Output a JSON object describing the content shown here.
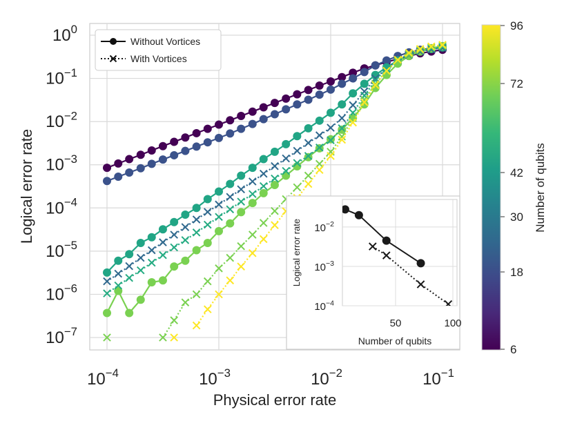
{
  "chart_data": [
    {
      "type": "line",
      "title": "",
      "xlabel": "Physical error rate",
      "ylabel": "Logical error rate",
      "x_scale": "log",
      "y_scale": "log",
      "xlim": [
        0.0001,
        0.1
      ],
      "ylim": [
        1e-07,
        1
      ],
      "x_ticks": [
        {
          "value": 0.0001,
          "base": "10",
          "exp": "−4"
        },
        {
          "value": 0.001,
          "base": "10",
          "exp": "−3"
        },
        {
          "value": 0.01,
          "base": "10",
          "exp": "−2"
        },
        {
          "value": 0.1,
          "base": "10",
          "exp": "−1"
        }
      ],
      "y_ticks": [
        {
          "value": 1e-07,
          "base": "10",
          "exp": "−7"
        },
        {
          "value": 1e-06,
          "base": "10",
          "exp": "−6"
        },
        {
          "value": 1e-05,
          "base": "10",
          "exp": "−5"
        },
        {
          "value": 0.0001,
          "base": "10",
          "exp": "−4"
        },
        {
          "value": 0.001,
          "base": "10",
          "exp": "−3"
        },
        {
          "value": 0.01,
          "base": "10",
          "exp": "−2"
        },
        {
          "value": 0.1,
          "base": "10",
          "exp": "−1"
        },
        {
          "value": 1,
          "base": "10",
          "exp": "0"
        }
      ],
      "legend": {
        "position": "top-left",
        "entries": [
          {
            "label": "Without Vortices",
            "marker": "circle",
            "line": "solid"
          },
          {
            "label": "With Vortices",
            "marker": "x",
            "line": "dotted"
          }
        ]
      },
      "colorbar": {
        "label": "Number of qubits",
        "ticks": [
          6,
          18,
          30,
          42,
          72,
          96
        ],
        "range": [
          6,
          96
        ],
        "colormap": [
          "#440154",
          "#482878",
          "#3e4989",
          "#31688e",
          "#26828e",
          "#1f9e89",
          "#35b779",
          "#6ece58",
          "#b5de2b",
          "#fde725"
        ]
      },
      "x": [
        0.0001,
        0.000126,
        0.000158,
        0.0002,
        0.000251,
        0.000316,
        0.000398,
        0.000501,
        0.000631,
        0.000794,
        0.001,
        0.00126,
        0.00158,
        0.002,
        0.00251,
        0.00316,
        0.00398,
        0.00501,
        0.00631,
        0.00794,
        0.01,
        0.0126,
        0.0158,
        0.02,
        0.0251,
        0.0316,
        0.0398,
        0.0501,
        0.0631,
        0.0794,
        0.1
      ],
      "series": [
        {
          "name": "6 qubits, without vortices",
          "qubits": 6,
          "style": "solid",
          "marker": "circle",
          "color": "#440154",
          "values": [
            0.00085,
            0.00107,
            0.00135,
            0.0017,
            0.00214,
            0.0027,
            0.0034,
            0.00428,
            0.00539,
            0.0068,
            0.0085,
            0.0107,
            0.0135,
            0.017,
            0.0214,
            0.027,
            0.034,
            0.0428,
            0.0539,
            0.068,
            0.085,
            0.107,
            0.135,
            0.17,
            0.2,
            0.24,
            0.28,
            0.33,
            0.38,
            0.42,
            0.46
          ]
        },
        {
          "name": "18 qubits, without vortices",
          "qubits": 18,
          "style": "solid",
          "marker": "circle",
          "color": "#3b528b",
          "values": [
            0.00042,
            0.00053,
            0.00066,
            0.00083,
            0.00105,
            0.00132,
            0.00166,
            0.00209,
            0.00263,
            0.00331,
            0.00417,
            0.0053,
            0.0068,
            0.0088,
            0.0114,
            0.0148,
            0.0192,
            0.025,
            0.032,
            0.042,
            0.055,
            0.075,
            0.1,
            0.14,
            0.2,
            0.26,
            0.33,
            0.4,
            0.46,
            0.5,
            0.54
          ]
        },
        {
          "name": "42 qubits, without vortices",
          "qubits": 42,
          "style": "solid",
          "marker": "circle",
          "color": "#21a585",
          "values": [
            3.2e-06,
            6e-06,
            8.5e-06,
            1.55e-05,
            2.1e-05,
            3.2e-05,
            4.7e-05,
            7e-05,
            0.0001,
            0.00016,
            0.00024,
            0.00036,
            0.00056,
            0.00085,
            0.00135,
            0.002,
            0.003,
            0.0046,
            0.007,
            0.0105,
            0.016,
            0.025,
            0.045,
            0.075,
            0.12,
            0.18,
            0.26,
            0.34,
            0.42,
            0.48,
            0.52
          ]
        },
        {
          "name": "72 qubits, without vortices",
          "qubits": 72,
          "style": "solid",
          "marker": "circle",
          "color": "#7ad151",
          "values": [
            3.7e-07,
            1.2e-06,
            3.7e-07,
            7.5e-07,
            1.9e-06,
            2.1e-06,
            4.4e-06,
            6e-06,
            1.05e-05,
            1.55e-05,
            2.9e-05,
            4.4e-05,
            8e-05,
            0.00013,
            0.00022,
            0.00034,
            0.00056,
            0.00092,
            0.0015,
            0.0024,
            0.0039,
            0.0065,
            0.012,
            0.025,
            0.06,
            0.12,
            0.22,
            0.33,
            0.42,
            0.5,
            0.56
          ]
        },
        {
          "name": "30 qubits, with vortices",
          "qubits": 30,
          "style": "dotted",
          "marker": "x",
          "color": "#30698e",
          "values": [
            2e-06,
            3e-06,
            4.5e-06,
            7e-06,
            1.05e-05,
            1.6e-05,
            2.4e-05,
            3.6e-05,
            5.4e-05,
            8.1e-05,
            0.00012,
            0.00018,
            0.00027,
            0.00041,
            0.00062,
            0.00093,
            0.0014,
            0.0021,
            0.0032,
            0.0048,
            0.0072,
            0.012,
            0.024,
            0.05,
            0.1,
            0.17,
            0.26,
            0.35,
            0.42,
            0.47,
            0.51
          ]
        },
        {
          "name": "42 qubits, with vortices",
          "qubits": 42,
          "style": "dotted",
          "marker": "x",
          "color": "#25ab82",
          "values": [
            1.05e-06,
            1.6e-06,
            2.4e-06,
            3.6e-06,
            5.4e-06,
            8.1e-06,
            1.22e-05,
            1.8e-05,
            2.7e-05,
            4.1e-05,
            6.2e-05,
            9.3e-05,
            0.00014,
            0.00021,
            0.00032,
            0.00048,
            0.00072,
            0.0011,
            0.0016,
            0.0025,
            0.0037,
            0.007,
            0.016,
            0.04,
            0.09,
            0.17,
            0.27,
            0.37,
            0.45,
            0.5,
            0.54
          ]
        },
        {
          "name": "72 qubits, with vortices",
          "qubits": 72,
          "style": "dotted",
          "marker": "x",
          "color": "#7ad151",
          "values": [
            1e-07,
            null,
            null,
            null,
            null,
            1e-07,
            2.5e-07,
            6.5e-07,
            1e-06,
            2e-06,
            4e-06,
            7e-06,
            1.3e-05,
            2.4e-05,
            4.5e-05,
            8.5e-05,
            0.00016,
            0.0003,
            0.00056,
            0.00105,
            0.002,
            0.0045,
            0.012,
            0.032,
            0.075,
            0.15,
            0.25,
            0.36,
            0.45,
            0.52,
            0.57
          ]
        },
        {
          "name": "96 qubits, with vortices",
          "qubits": 96,
          "style": "dotted",
          "marker": "x",
          "color": "#fde725",
          "values": [
            null,
            null,
            null,
            null,
            null,
            null,
            1e-07,
            null,
            1.9e-07,
            4.5e-07,
            1e-06,
            2.1e-06,
            4.4e-06,
            9e-06,
            1.9e-05,
            4e-05,
            8.4e-05,
            0.00017,
            0.00036,
            0.00076,
            0.0016,
            0.0038,
            0.0095,
            0.028,
            0.07,
            0.15,
            0.27,
            0.39,
            0.48,
            0.55,
            0.6
          ]
        }
      ]
    },
    {
      "type": "line",
      "title": "",
      "xlabel": "Number of qubits",
      "ylabel": "Logical error rate",
      "x_scale": "linear",
      "y_scale": "log",
      "xlim": [
        0,
        100
      ],
      "ylim": [
        0.0001,
        0.05
      ],
      "x_ticks": [
        {
          "value": 50,
          "label": "50"
        },
        {
          "value": 100,
          "label": "100"
        }
      ],
      "y_ticks": [
        {
          "value": 0.0001,
          "base": "10",
          "exp": "−4"
        },
        {
          "value": 0.001,
          "base": "10",
          "exp": "−3"
        },
        {
          "value": 0.01,
          "base": "10",
          "exp": "−2"
        }
      ],
      "series": [
        {
          "name": "Without Vortices",
          "style": "solid",
          "marker": "circle",
          "color": "#1a1a1a",
          "x": [
            6,
            18,
            42,
            72
          ],
          "values": [
            0.028,
            0.02,
            0.0045,
            0.0012
          ]
        },
        {
          "name": "With Vortices",
          "style": "dotted",
          "marker": "x",
          "color": "#1a1a1a",
          "x": [
            30,
            42,
            72,
            96
          ],
          "values": [
            0.0032,
            0.0019,
            0.00035,
            0.00011
          ]
        }
      ]
    }
  ]
}
